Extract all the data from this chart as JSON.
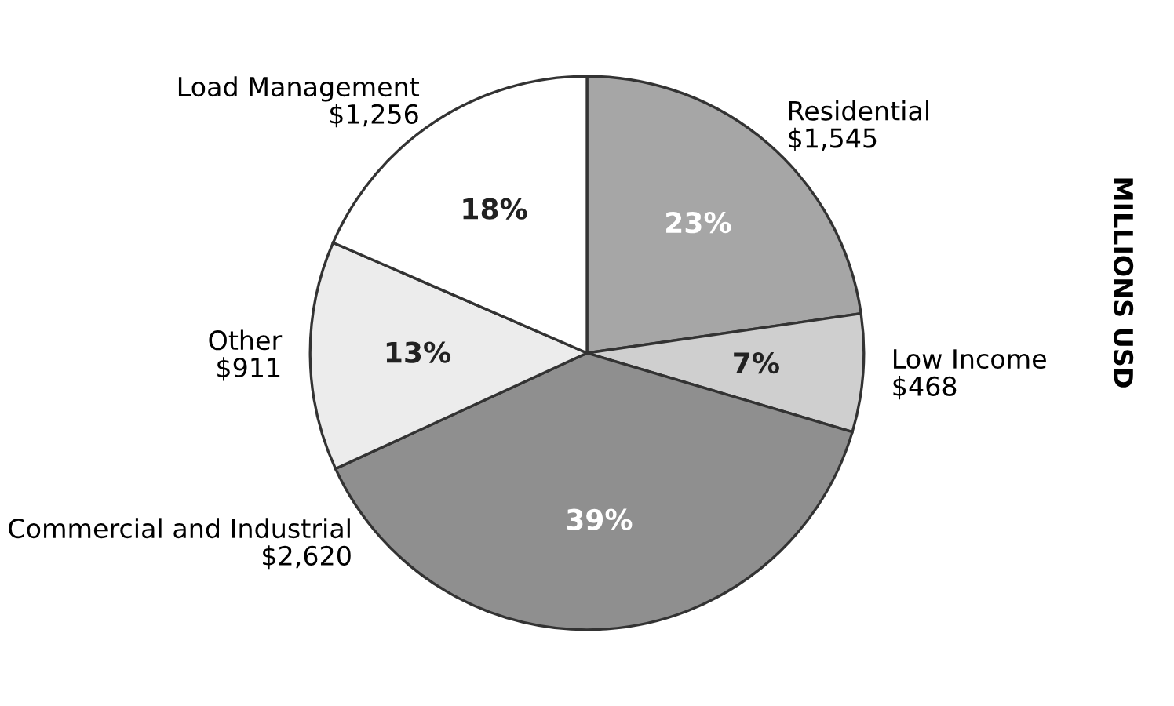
{
  "chart_data": {
    "type": "pie",
    "categories": [
      "Residential",
      "Low Income",
      "Commercial and Industrial",
      "Other",
      "Load Management"
    ],
    "values": [
      1545,
      468,
      2620,
      911,
      1256
    ],
    "value_labels": [
      "$1,545",
      "$468",
      "$2,620",
      "$911",
      "$1,256"
    ],
    "colors": [
      "#a6a6a6",
      "#cfcfcf",
      "#8f8f8f",
      "#ececec",
      "#ffffff"
    ],
    "ylabel": "MILLIONS USD",
    "annotations": [
      {
        "text": "23%",
        "x": "Residential"
      },
      {
        "text": "7%",
        "x": "Low Income"
      },
      {
        "text": "39%",
        "x": "Commercial and Industrial"
      },
      {
        "text": "13%",
        "x": "Other"
      },
      {
        "text": "18%",
        "x": "Load Management"
      }
    ],
    "legend": false
  }
}
